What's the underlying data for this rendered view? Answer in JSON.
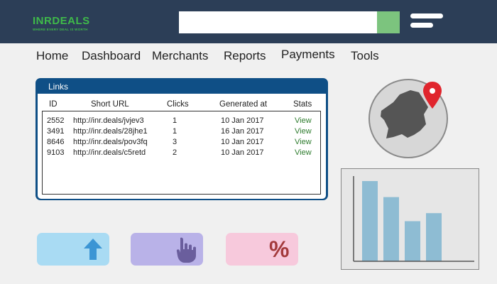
{
  "header": {
    "logo_title": "INRDEALS",
    "logo_tagline": "WHERE EVERY DEAL IS WORTH",
    "search": {
      "value": "",
      "placeholder": ""
    }
  },
  "nav": {
    "items": [
      "Home",
      "Dashboard",
      "Merchants",
      "Reports",
      "Payments",
      "Tools"
    ]
  },
  "links_panel": {
    "title": "Links",
    "columns": [
      "ID",
      "Short URL",
      "Clicks",
      "Generated at",
      "Stats"
    ],
    "rows": [
      {
        "id": "2552",
        "url": "http://inr.deals/jvjev3",
        "clicks": "1",
        "generated": "10 Jan 2017",
        "stats": "View"
      },
      {
        "id": "3491",
        "url": "http://inr.deals/28jhe1",
        "clicks": "1",
        "generated": "16 Jan 2017",
        "stats": "View"
      },
      {
        "id": "8646",
        "url": "http://inr.deals/pov3fq",
        "clicks": "3",
        "generated": "10 Jan 2017",
        "stats": "View"
      },
      {
        "id": "9103",
        "url": "http://inr.deals/c5retd",
        "clicks": "2",
        "generated": "10 Jan 2017",
        "stats": "View"
      }
    ]
  },
  "cards": {
    "percent_label": "%",
    "upload_icon": "arrow-up-icon",
    "hand_icon": "hand-pointer-icon",
    "percent_icon": "percent-icon"
  },
  "map_widget": {
    "icons": [
      "map-region-icon",
      "location-pin-icon"
    ]
  },
  "chart_data": {
    "type": "bar",
    "categories": [
      "",
      "",
      "",
      ""
    ],
    "values": [
      100,
      80,
      50,
      60
    ],
    "ylim": [
      0,
      100
    ],
    "grid": false,
    "title": "",
    "xlabel": "",
    "ylabel": ""
  },
  "colors": {
    "header_bg": "#2c3e57",
    "logo": "#3fba4a",
    "search_button": "#7cc47e",
    "panel": "#0f4f86",
    "view_link": "#2f7d2f",
    "bar": "#8ebcd3",
    "card_upload": "#a9dbf3",
    "card_hand": "#b9b2e8",
    "card_percent": "#f7c9dc"
  }
}
